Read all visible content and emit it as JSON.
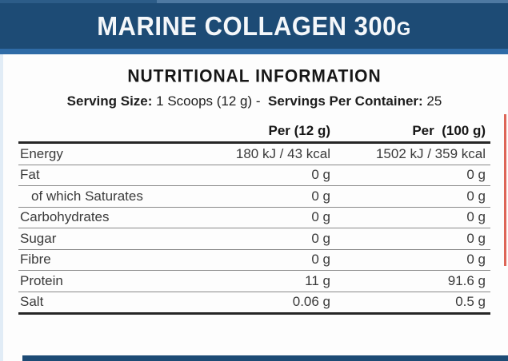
{
  "header": {
    "title": "MARINE COLLAGEN 300",
    "title_suffix": "G"
  },
  "panel": {
    "heading": "NUTRITIONAL INFORMATION",
    "serving": {
      "size_label": "Serving Size:",
      "size_value": "1 Scoops (12 g) -",
      "container_label": "Servings Per Container:",
      "container_value": "25"
    },
    "table": {
      "col_per_serving": "Per (12 g)",
      "col_per_100g": "Per  (100 g)",
      "rows": [
        {
          "label": "Energy",
          "per_serving": "180 kJ / 43 kcal",
          "per_100g": "1502 kJ / 359 kcal",
          "indent": false
        },
        {
          "label": "Fat",
          "per_serving": "0 g",
          "per_100g": "0 g",
          "indent": false
        },
        {
          "label": "of which Saturates",
          "per_serving": "0 g",
          "per_100g": "0 g",
          "indent": true
        },
        {
          "label": "Carbohydrates",
          "per_serving": "0 g",
          "per_100g": "0 g",
          "indent": false
        },
        {
          "label": "Sugar",
          "per_serving": "0 g",
          "per_100g": "0 g",
          "indent": false
        },
        {
          "label": "Fibre",
          "per_serving": "0 g",
          "per_100g": "0 g",
          "indent": false
        },
        {
          "label": "Protein",
          "per_serving": "11 g",
          "per_100g": "91.6 g",
          "indent": false
        },
        {
          "label": "Salt",
          "per_serving": "0.06 g",
          "per_100g": "0.5 g",
          "indent": false
        }
      ]
    }
  },
  "colors": {
    "navy": "#1d4b75",
    "blue_divider": "#2f6ba6",
    "accent_red": "#d6402e",
    "left_edge_blue": "#e1ecf6",
    "rule_dark": "#262626",
    "rule_thin": "#898989"
  }
}
